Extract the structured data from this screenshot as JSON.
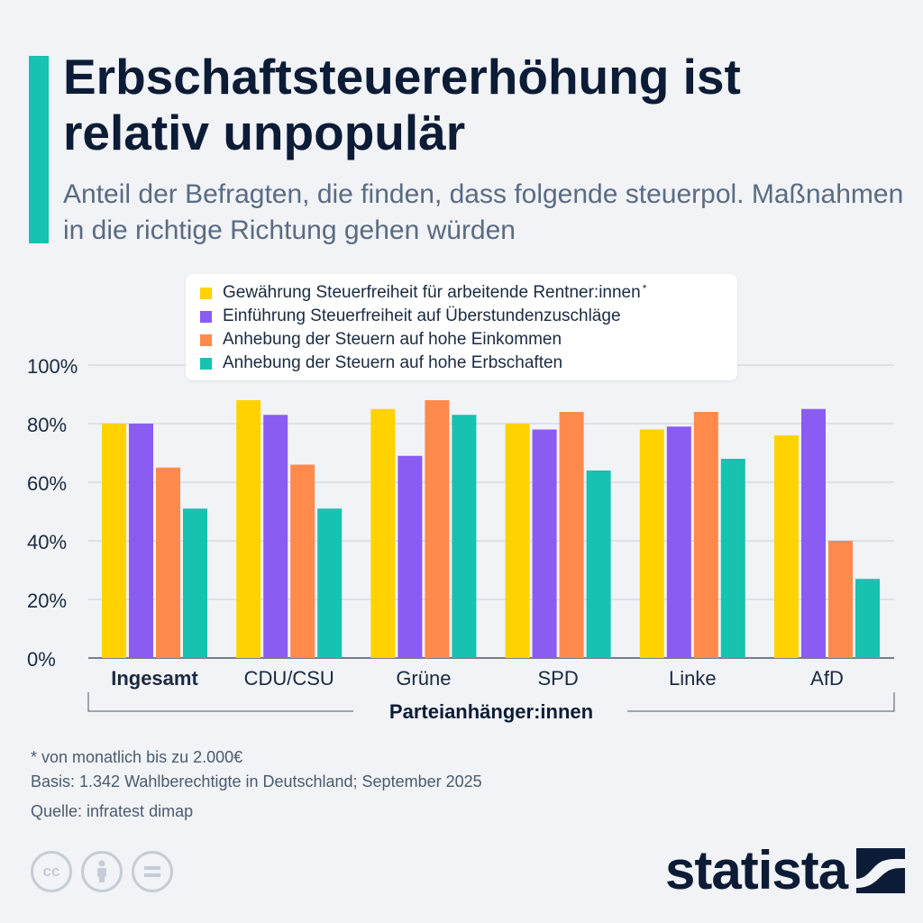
{
  "header": {
    "title": "Erbschaftsteuererhöhung ist relativ unpopulär",
    "subtitle": "Anteil der Befragten, die finden, dass folgende steuerpol. Maßnahmen in die richtige Richtung gehen würden"
  },
  "legend": {
    "items": [
      {
        "label": "Gewährung Steuerfreiheit für arbeitende Rentner:innen",
        "note": "*",
        "color": "#ffd200"
      },
      {
        "label": "Einführung Steuerfreiheit auf Überstundenzuschläge",
        "note": "",
        "color": "#8a5cf2"
      },
      {
        "label": "Anhebung der Steuern auf hohe Einkommen",
        "note": "",
        "color": "#ff8a4c"
      },
      {
        "label": "Anhebung der Steuern auf hohe Erbschaften",
        "note": "",
        "color": "#17c2b0"
      }
    ]
  },
  "chart_data": {
    "type": "bar",
    "categories": [
      "Ingesamt",
      "CDU/CSU",
      "Grüne",
      "SPD",
      "Linke",
      "AfD"
    ],
    "bold_categories": [
      "Ingesamt"
    ],
    "series": [
      {
        "name": "Gewährung Steuerfreiheit für arbeitende Rentner:innen",
        "color": "#ffd200",
        "values": [
          80,
          88,
          85,
          80,
          78,
          76
        ]
      },
      {
        "name": "Einführung Steuerfreiheit auf Überstundenzuschläge",
        "color": "#8a5cf2",
        "values": [
          80,
          83,
          69,
          78,
          79,
          85
        ]
      },
      {
        "name": "Anhebung der Steuern auf hohe Einkommen",
        "color": "#ff8a4c",
        "values": [
          65,
          66,
          88,
          84,
          84,
          40
        ]
      },
      {
        "name": "Anhebung der Steuern auf hohe Erbschaften",
        "color": "#17c2b0",
        "values": [
          51,
          51,
          83,
          64,
          68,
          27
        ]
      }
    ],
    "ylim": [
      0,
      100
    ],
    "yticks": [
      0,
      20,
      40,
      60,
      80,
      100
    ],
    "ytick_labels": [
      "0%",
      "20%",
      "40%",
      "60%",
      "80%",
      "100%"
    ],
    "xlabel": "Parteianhänger:innen",
    "ylabel": "",
    "grid": true,
    "legend_position": "top"
  },
  "footer": {
    "note": "* von monatlich bis zu 2.000€",
    "basis": "Basis: 1.342 Wahlberechtigte in Deutschland; September 2025",
    "source": "Quelle: infratest dimap",
    "brand": "statista",
    "license_icons": [
      "cc-icon",
      "attribution-icon",
      "no-derivatives-icon"
    ]
  }
}
